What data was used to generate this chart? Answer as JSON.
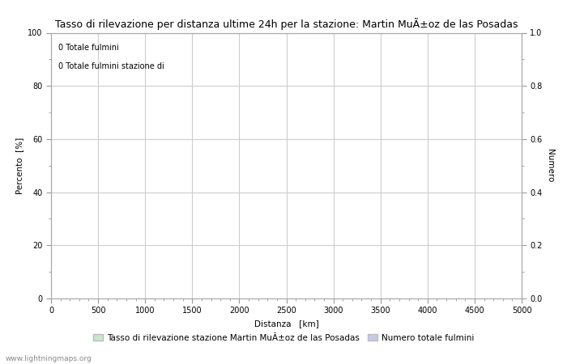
{
  "title": "Tasso di rilevazione per distanza ultime 24h per la stazione: Martin MuÃ±oz de las Posadas",
  "xlabel": "Distanza   [km]",
  "ylabel_left": "Percento  [%]",
  "ylabel_right": "Numero",
  "annotation_line1": "0 Totale fulmini",
  "annotation_line2": "0 Totale fulmini stazione di",
  "xlim": [
    0,
    5000
  ],
  "ylim_left": [
    0,
    100
  ],
  "ylim_right": [
    0.0,
    1.0
  ],
  "xticks": [
    0,
    500,
    1000,
    1500,
    2000,
    2500,
    3000,
    3500,
    4000,
    4500,
    5000
  ],
  "yticks_left": [
    0,
    20,
    40,
    60,
    80,
    100
  ],
  "yticks_right": [
    0.0,
    0.2,
    0.4,
    0.6,
    0.8,
    1.0
  ],
  "grid_color": "#cccccc",
  "background_color": "#ffffff",
  "legend_label_green": "Tasso di rilevazione stazione Martin MuÃ±oz de las Posadas",
  "legend_label_blue": "Numero totale fulmini",
  "legend_color_green": "#c8e6c9",
  "legend_color_blue": "#c5cae9",
  "watermark": "www.lightningmaps.org",
  "title_fontsize": 9,
  "axis_fontsize": 7.5,
  "tick_fontsize": 7,
  "annotation_fontsize": 7,
  "legend_fontsize": 7.5
}
